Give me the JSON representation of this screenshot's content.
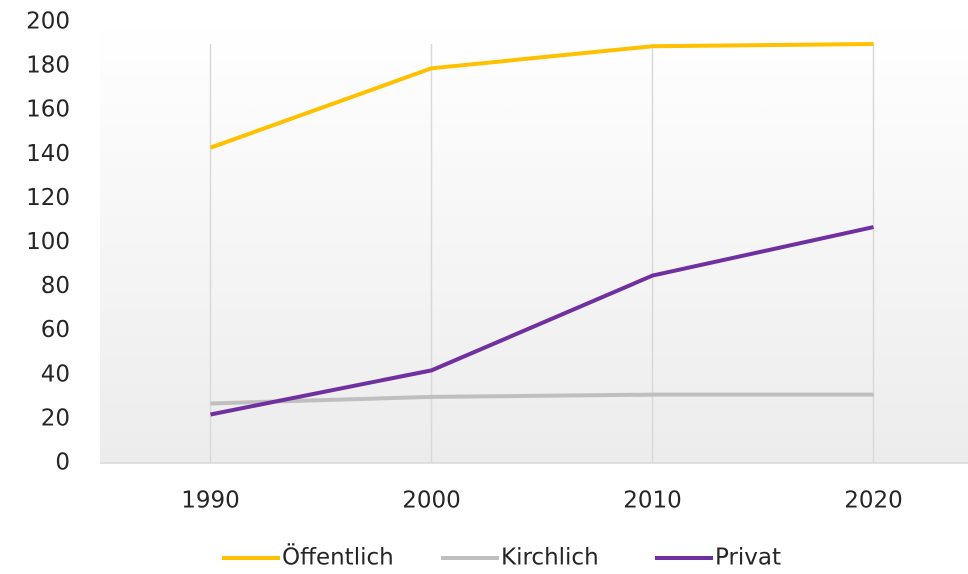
{
  "chart_data": {
    "type": "line",
    "categories": [
      "1990",
      "2000",
      "2010",
      "2020"
    ],
    "series": [
      {
        "name": "Öffentlich",
        "color": "#ffc000",
        "values": [
          143,
          179,
          189,
          190
        ]
      },
      {
        "name": "Kirchlich",
        "color": "#bfbfbf",
        "values": [
          27,
          30,
          31,
          31
        ]
      },
      {
        "name": "Privat",
        "color": "#7030a0",
        "values": [
          22,
          42,
          85,
          107
        ]
      }
    ],
    "ylim": [
      0,
      200
    ],
    "yticks": [
      0,
      20,
      40,
      60,
      80,
      100,
      120,
      140,
      160,
      180,
      200
    ],
    "grid": "x",
    "legend": "bottom"
  }
}
